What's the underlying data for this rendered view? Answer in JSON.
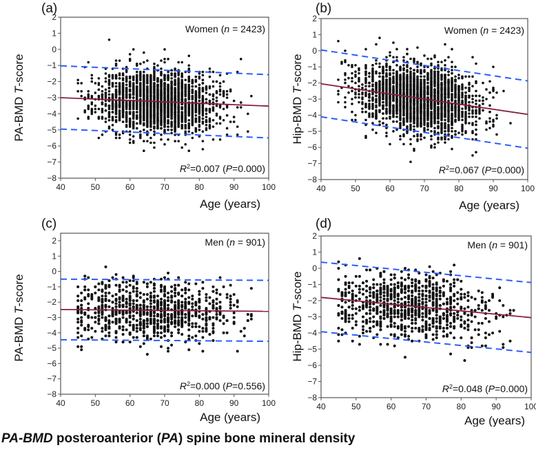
{
  "caption": {
    "abbr": "PA-BMD",
    "text1": " posteroanterior (",
    "abbr2": "PA",
    "text2": ") spine bone mineral density"
  },
  "chart_data": [
    {
      "type": "scatter",
      "panel": "(a)",
      "group": "Women",
      "n_label": "n",
      "n": 2423,
      "ylabel": "PA-BMD",
      "ylabel_italic": "T",
      "ylabel_suffix": "-score",
      "xlabel": "Age (years)",
      "xlim": [
        40,
        100
      ],
      "ylim": [
        -8,
        2
      ],
      "xticks": [
        40,
        50,
        60,
        70,
        80,
        90,
        100
      ],
      "yticks": [
        2,
        1,
        0,
        -1,
        -2,
        -3,
        -4,
        -5,
        -6,
        -7,
        -8
      ],
      "r2": "0.007",
      "p": "0.000",
      "regression": {
        "x": [
          40,
          100
        ],
        "y": [
          -3.0,
          -3.52
        ]
      },
      "upper_bound": {
        "x": [
          40,
          100
        ],
        "y": [
          -1.02,
          -1.57
        ]
      },
      "lower_bound": {
        "x": [
          40,
          100
        ],
        "y": [
          -4.95,
          -5.5
        ]
      },
      "age_mean": 68,
      "age_sd": 8.5,
      "residual_sd": 0.98,
      "seed": 11
    },
    {
      "type": "scatter",
      "panel": "(b)",
      "group": "Women",
      "n_label": "n",
      "n": 2423,
      "ylabel": "Hip-BMD",
      "ylabel_italic": "T",
      "ylabel_suffix": "-score",
      "xlabel": "Age (years)",
      "xlim": [
        40,
        100
      ],
      "ylim": [
        -8,
        2
      ],
      "xticks": [
        40,
        50,
        60,
        70,
        80,
        90,
        100
      ],
      "yticks": [
        2,
        1,
        0,
        -1,
        -2,
        -3,
        -4,
        -5,
        -6,
        -7,
        -8
      ],
      "r2": "0.067",
      "p": "0.000",
      "regression": {
        "x": [
          40,
          100
        ],
        "y": [
          -2.05,
          -3.95
        ]
      },
      "upper_bound": {
        "x": [
          40,
          100
        ],
        "y": [
          0.05,
          -1.87
        ]
      },
      "lower_bound": {
        "x": [
          40,
          100
        ],
        "y": [
          -4.1,
          -6.05
        ]
      },
      "age_mean": 68,
      "age_sd": 8.5,
      "residual_sd": 1.02,
      "seed": 23
    },
    {
      "type": "scatter",
      "panel": "(c)",
      "group": "Men",
      "n_label": "n",
      "n": 901,
      "ylabel": "PA-BMD",
      "ylabel_italic": "T",
      "ylabel_suffix": "-score",
      "xlabel": "Age (years)",
      "xlim": [
        40,
        100
      ],
      "ylim": [
        -8,
        2.5
      ],
      "xticks": [
        40,
        50,
        60,
        70,
        80,
        90,
        100
      ],
      "yticks": [
        2,
        1,
        0,
        -1,
        -2,
        -3,
        -4,
        -5,
        -6,
        -7,
        -8
      ],
      "r2": "0.000",
      "p": "0.556",
      "regression": {
        "x": [
          40,
          100
        ],
        "y": [
          -2.48,
          -2.6
        ]
      },
      "upper_bound": {
        "x": [
          40,
          100
        ],
        "y": [
          -0.5,
          -0.58
        ]
      },
      "lower_bound": {
        "x": [
          40,
          100
        ],
        "y": [
          -4.45,
          -4.55
        ]
      },
      "age_mean": 66,
      "age_sd": 11,
      "residual_sd": 1.0,
      "seed": 37
    },
    {
      "type": "scatter",
      "panel": "(d)",
      "group": "Men",
      "n_label": "n",
      "n": 901,
      "ylabel": "Hip-BMD",
      "ylabel_italic": "T",
      "ylabel_suffix": "-score",
      "xlabel": "Age (years)",
      "xlim": [
        40,
        100
      ],
      "ylim": [
        -8,
        2
      ],
      "xticks": [
        40,
        50,
        60,
        70,
        80,
        90,
        100
      ],
      "yticks": [
        2,
        1,
        0,
        -1,
        -2,
        -3,
        -4,
        -5,
        -6,
        -7,
        -8
      ],
      "r2": "0.048",
      "p": "0.000",
      "regression": {
        "x": [
          40,
          100
        ],
        "y": [
          -1.8,
          -3.05
        ]
      },
      "upper_bound": {
        "x": [
          40,
          100
        ],
        "y": [
          0.38,
          -0.88
        ]
      },
      "lower_bound": {
        "x": [
          40,
          100
        ],
        "y": [
          -3.92,
          -5.2
        ]
      },
      "age_mean": 66,
      "age_sd": 11,
      "residual_sd": 1.07,
      "seed": 51
    }
  ],
  "colors": {
    "regression": "#8a1f3a",
    "bounds": "#2a5cff",
    "points": "#111111",
    "axis": "#555555"
  }
}
